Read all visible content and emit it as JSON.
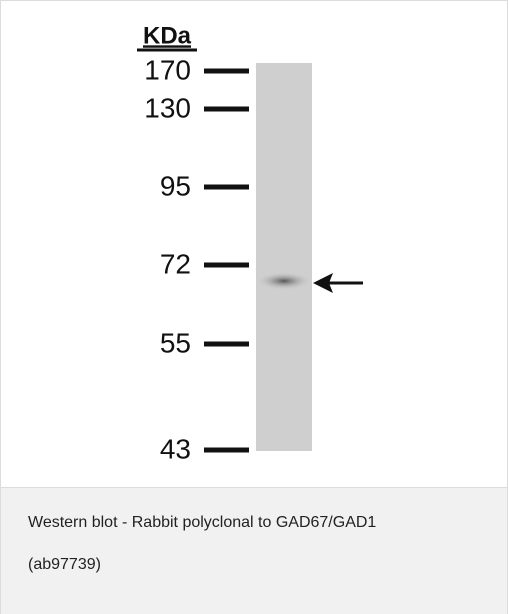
{
  "blot": {
    "unit_label": "KDa",
    "markers": [
      "170",
      "130",
      "95",
      "72",
      "55",
      "43"
    ]
  },
  "caption": "Western blot - Rabbit polyclonal to GAD67/GAD1 (ab97739)"
}
